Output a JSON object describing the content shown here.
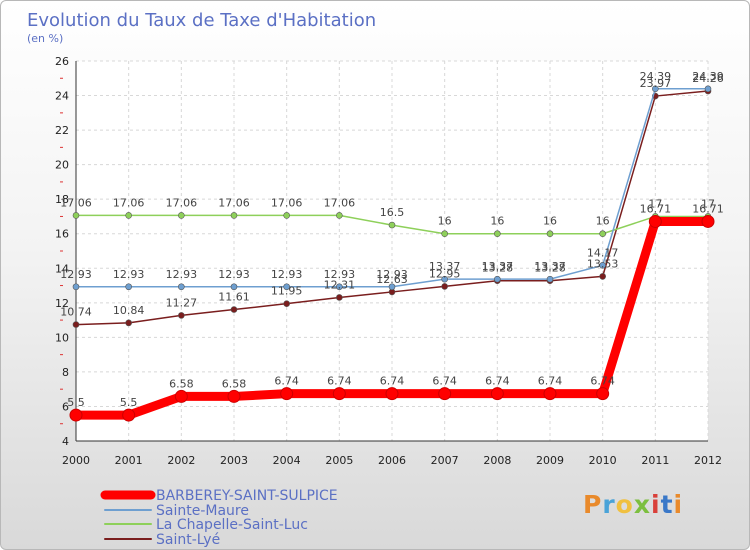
{
  "chart_data": {
    "type": "line",
    "title": "Evolution du Taux de Taxe d'Habitation",
    "subtitle": "(en %)",
    "categories": [
      "2000",
      "2001",
      "2002",
      "2003",
      "2004",
      "2005",
      "2006",
      "2007",
      "2008",
      "2009",
      "2010",
      "2011",
      "2012"
    ],
    "ylim": [
      4,
      26
    ],
    "yticks": [
      4,
      6,
      8,
      10,
      12,
      14,
      16,
      18,
      20,
      22,
      24,
      26
    ],
    "grid": true,
    "legend_position": "bottom-left",
    "series": [
      {
        "name": "BARBEREY-SAINT-SULPICE",
        "color": "#ff0000",
        "values": [
          5.5,
          5.5,
          6.58,
          6.58,
          6.74,
          6.74,
          6.74,
          6.74,
          6.74,
          6.74,
          6.74,
          16.71,
          16.71
        ],
        "labels": [
          "5.5",
          "5.5",
          "6.58",
          "6.58",
          "6.74",
          "6.74",
          "6.74",
          "6.74",
          "6.74",
          "6.74",
          "6.74",
          "16.71",
          "16.71"
        ]
      },
      {
        "name": "Sainte-Maure",
        "color": "#6e9fd0",
        "values": [
          12.93,
          12.93,
          12.93,
          12.93,
          12.93,
          12.93,
          12.93,
          13.37,
          13.37,
          13.37,
          14.17,
          24.39,
          24.39
        ],
        "labels": [
          "12.93",
          "12.93",
          "12.93",
          "12.93",
          "12.93",
          "12.93",
          "12.93",
          "13.37",
          "13.37",
          "13.37",
          "14.17",
          "24.39",
          "24.39"
        ]
      },
      {
        "name": "La Chapelle-Saint-Luc",
        "color": "#8ed05a",
        "values": [
          17.06,
          17.06,
          17.06,
          17.06,
          17.06,
          17.06,
          16.5,
          16,
          16,
          16,
          16,
          17,
          17
        ],
        "labels": [
          "17.06",
          "17.06",
          "17.06",
          "17.06",
          "17.06",
          "17.06",
          "16.5",
          "16",
          "16",
          "16",
          "16",
          "17",
          "17"
        ]
      },
      {
        "name": "Saint-Lyé",
        "color": "#7a1e1e",
        "values": [
          10.74,
          10.84,
          11.27,
          11.61,
          11.95,
          12.31,
          12.63,
          12.95,
          13.28,
          13.28,
          13.53,
          23.97,
          24.26
        ],
        "labels": [
          "10.74",
          "10.84",
          "11.27",
          "11.61",
          "11.95",
          "12.31",
          "12.63",
          "12.95",
          "13.28",
          "13.28",
          "13.53",
          "23.97",
          "24.26"
        ]
      }
    ]
  },
  "logo": {
    "text": "Proxiti",
    "letter_colors": [
      "#e98a2b",
      "#4aa3d8",
      "#f0c040",
      "#7cbf3f",
      "#d9403a",
      "#3a78c8",
      "#e98a2b"
    ]
  }
}
